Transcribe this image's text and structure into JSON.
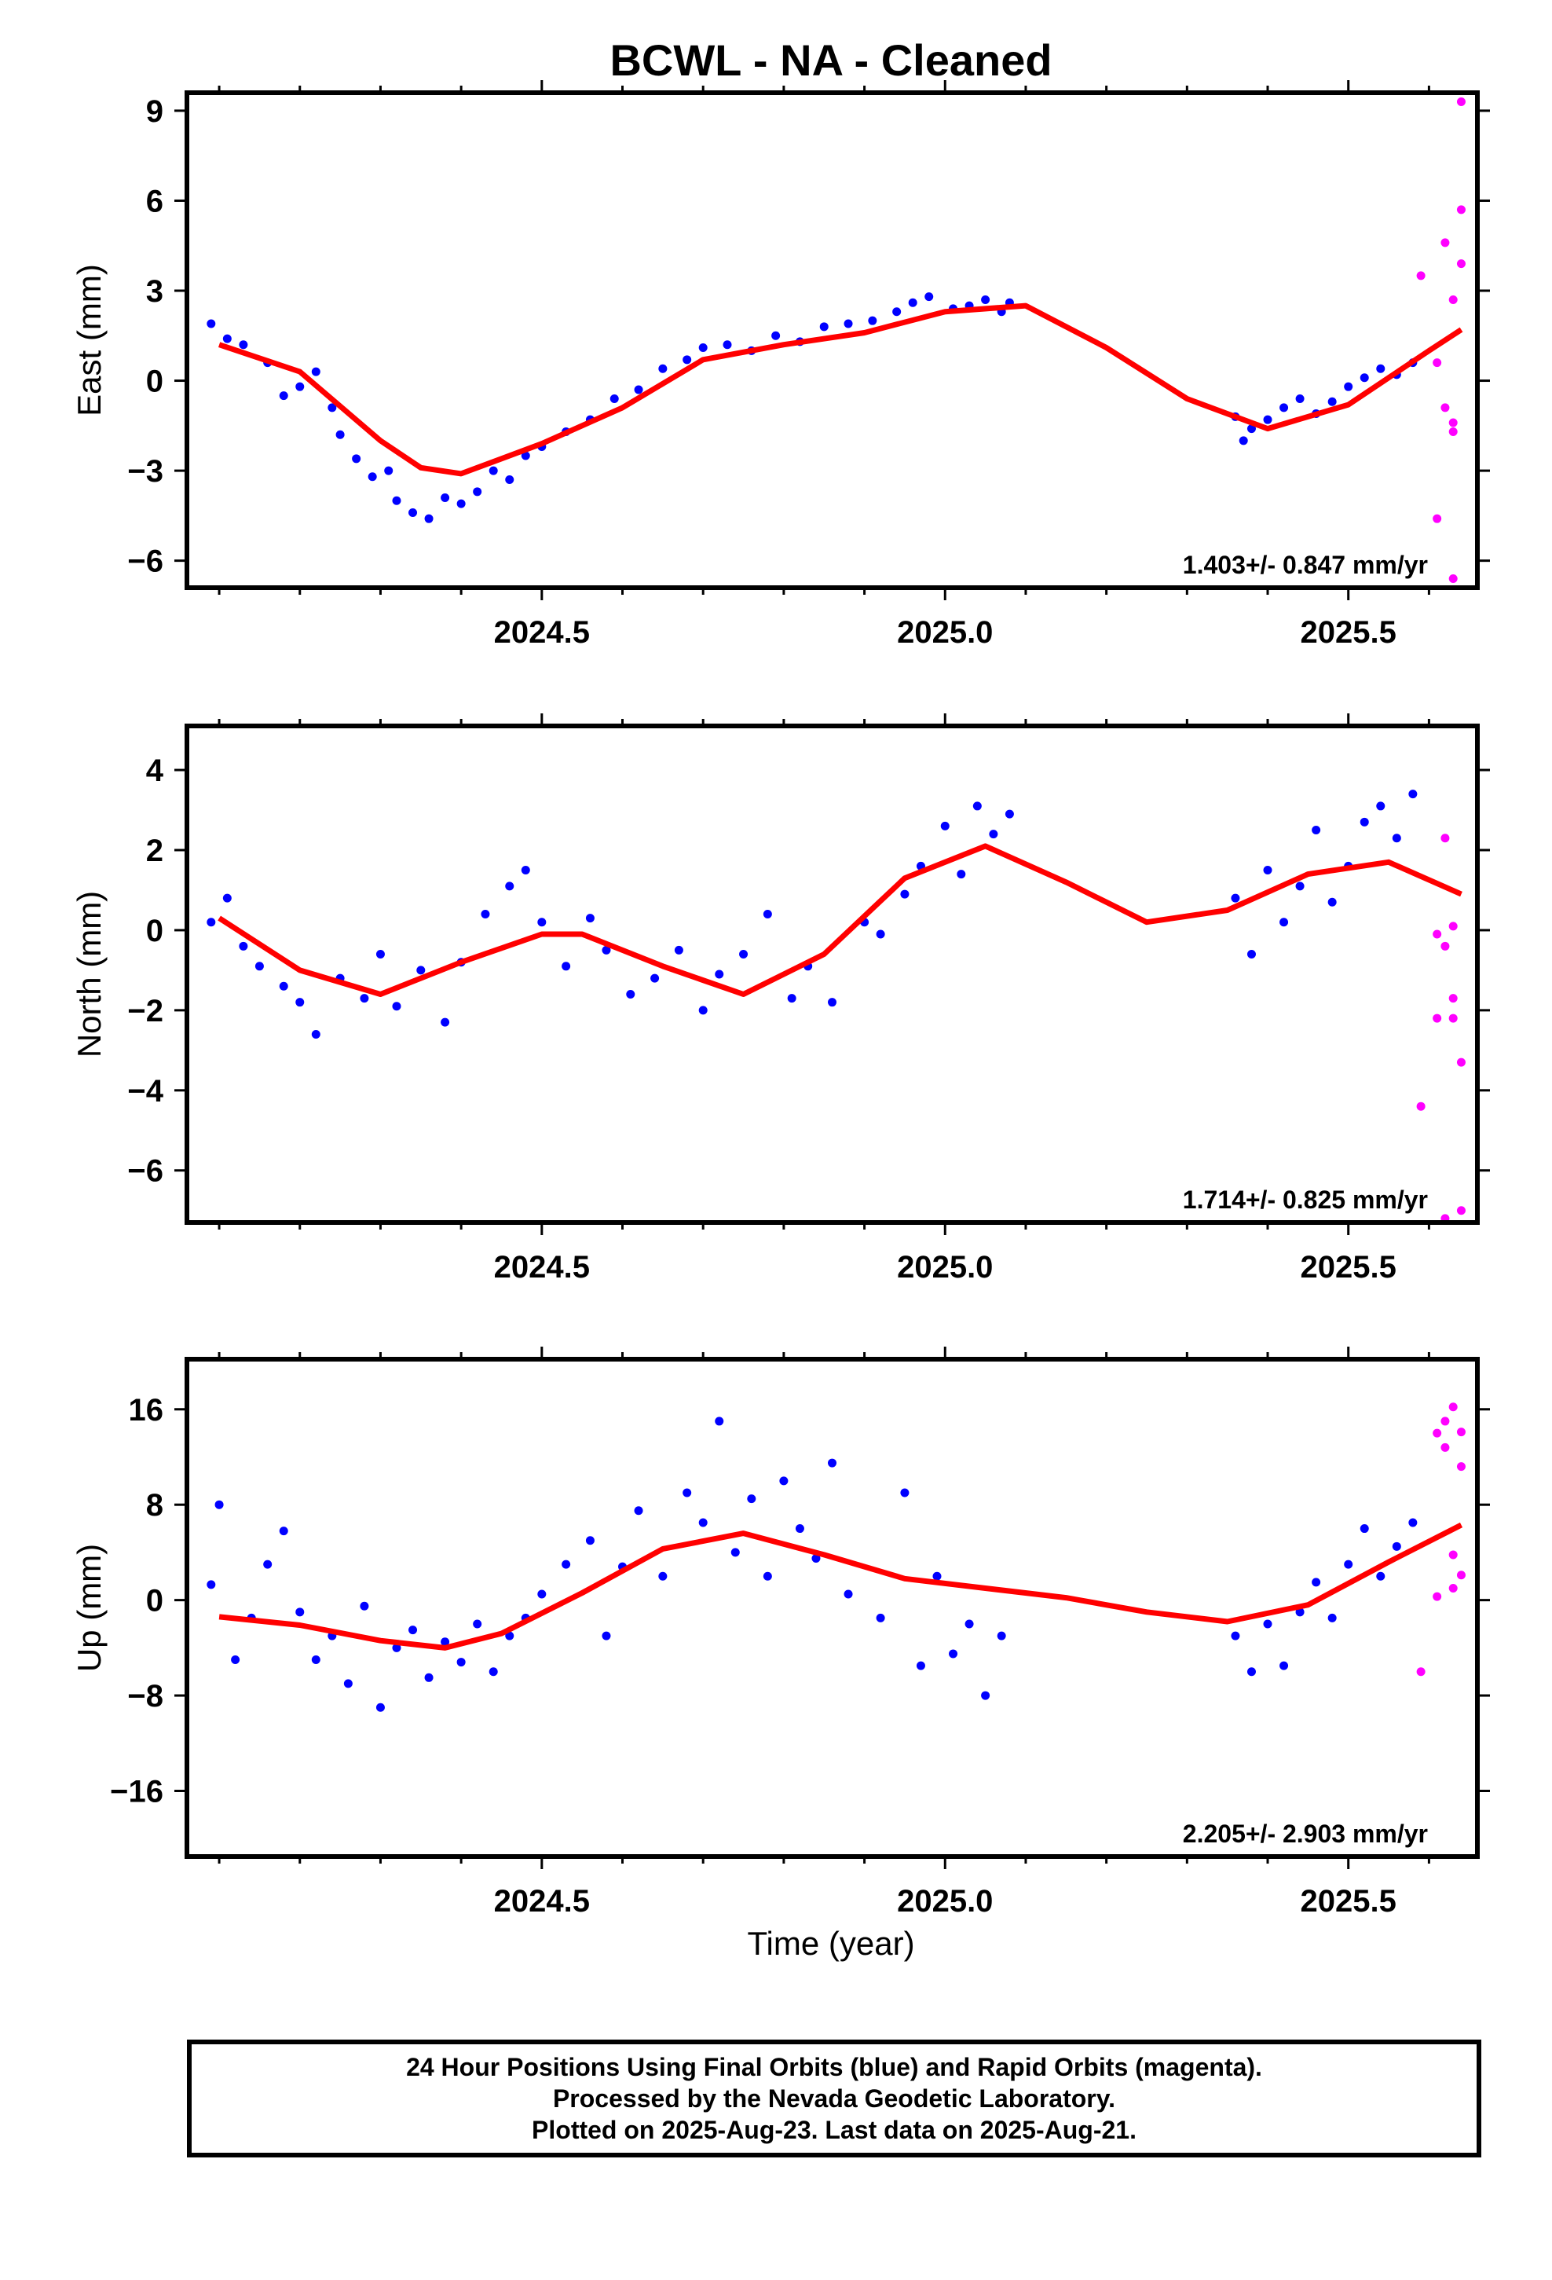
{
  "title": "BCWL  - NA - Cleaned",
  "xlabel": "Time (year)",
  "footer": {
    "line1": "24 Hour Positions Using Final Orbits (blue) and Rapid Orbits (magenta).",
    "line2": "Processed by the Nevada Geodetic Laboratory.",
    "line3": "Plotted on 2025-Aug-23. Last data on 2025-Aug-21."
  },
  "colors": {
    "final": "#0000ff",
    "rapid": "#ff00ff",
    "model": "#ff0000"
  },
  "chart_data": [
    {
      "type": "scatter",
      "ylabel": "East (mm)",
      "rate": "1.403+/- 0.847 mm/yr",
      "xlim": [
        2024.06,
        2025.66
      ],
      "ylim": [
        -6.9,
        9.6
      ],
      "yticks": [
        9,
        6,
        3,
        0,
        -3,
        -6
      ],
      "ytick_labels": [
        "9",
        "6",
        "3",
        "0",
        "−3",
        "−6"
      ],
      "xticks": [
        2024.5,
        2025.0,
        2025.5
      ],
      "xtick_labels": [
        "2024.5",
        "2025.0",
        "2025.5"
      ],
      "model": [
        [
          2024.1,
          1.2
        ],
        [
          2024.2,
          0.3
        ],
        [
          2024.3,
          -2.0
        ],
        [
          2024.35,
          -2.9
        ],
        [
          2024.4,
          -3.1
        ],
        [
          2024.5,
          -2.1
        ],
        [
          2024.6,
          -0.9
        ],
        [
          2024.7,
          0.7
        ],
        [
          2024.8,
          1.2
        ],
        [
          2024.9,
          1.6
        ],
        [
          2025.0,
          2.3
        ],
        [
          2025.1,
          2.5
        ],
        [
          2025.2,
          1.1
        ],
        [
          2025.3,
          -0.6
        ],
        [
          2025.4,
          -1.6
        ],
        [
          2025.5,
          -0.8
        ],
        [
          2025.6,
          1.0
        ],
        [
          2025.64,
          1.7
        ]
      ],
      "final": [
        [
          2024.09,
          1.9
        ],
        [
          2024.11,
          1.4
        ],
        [
          2024.13,
          1.2
        ],
        [
          2024.16,
          0.6
        ],
        [
          2024.18,
          -0.5
        ],
        [
          2024.2,
          -0.2
        ],
        [
          2024.22,
          0.3
        ],
        [
          2024.24,
          -0.9
        ],
        [
          2024.25,
          -1.8
        ],
        [
          2024.27,
          -2.6
        ],
        [
          2024.29,
          -3.2
        ],
        [
          2024.31,
          -3.0
        ],
        [
          2024.32,
          -4.0
        ],
        [
          2024.34,
          -4.4
        ],
        [
          2024.36,
          -4.6
        ],
        [
          2024.38,
          -3.9
        ],
        [
          2024.4,
          -4.1
        ],
        [
          2024.42,
          -3.7
        ],
        [
          2024.44,
          -3.0
        ],
        [
          2024.46,
          -3.3
        ],
        [
          2024.48,
          -2.5
        ],
        [
          2024.5,
          -2.2
        ],
        [
          2024.53,
          -1.7
        ],
        [
          2024.56,
          -1.3
        ],
        [
          2024.59,
          -0.6
        ],
        [
          2024.62,
          -0.3
        ],
        [
          2024.65,
          0.4
        ],
        [
          2024.68,
          0.7
        ],
        [
          2024.7,
          1.1
        ],
        [
          2024.73,
          1.2
        ],
        [
          2024.76,
          1.0
        ],
        [
          2024.79,
          1.5
        ],
        [
          2024.82,
          1.3
        ],
        [
          2024.85,
          1.8
        ],
        [
          2024.88,
          1.9
        ],
        [
          2024.91,
          2.0
        ],
        [
          2024.94,
          2.3
        ],
        [
          2024.96,
          2.6
        ],
        [
          2024.98,
          2.8
        ],
        [
          2025.01,
          2.4
        ],
        [
          2025.03,
          2.5
        ],
        [
          2025.05,
          2.7
        ],
        [
          2025.07,
          2.3
        ],
        [
          2025.08,
          2.6
        ],
        [
          2025.36,
          -1.2
        ],
        [
          2025.37,
          -2.0
        ],
        [
          2025.38,
          -1.6
        ],
        [
          2025.4,
          -1.3
        ],
        [
          2025.42,
          -0.9
        ],
        [
          2025.44,
          -0.6
        ],
        [
          2025.46,
          -1.1
        ],
        [
          2025.48,
          -0.7
        ],
        [
          2025.5,
          -0.2
        ],
        [
          2025.52,
          0.1
        ],
        [
          2025.54,
          0.4
        ],
        [
          2025.56,
          0.2
        ],
        [
          2025.58,
          0.6
        ]
      ],
      "rapid": [
        [
          2025.59,
          3.5
        ],
        [
          2025.61,
          0.6
        ],
        [
          2025.61,
          -4.6
        ],
        [
          2025.62,
          4.6
        ],
        [
          2025.62,
          -0.9
        ],
        [
          2025.63,
          2.7
        ],
        [
          2025.63,
          -1.4
        ],
        [
          2025.63,
          -1.7
        ],
        [
          2025.64,
          5.7
        ],
        [
          2025.64,
          3.9
        ],
        [
          2025.64,
          9.3
        ],
        [
          2025.63,
          -6.6
        ]
      ]
    },
    {
      "type": "scatter",
      "ylabel": "North (mm)",
      "rate": "1.714+/- 0.825 mm/yr",
      "xlim": [
        2024.06,
        2025.66
      ],
      "ylim": [
        -7.3,
        5.1
      ],
      "yticks": [
        4,
        2,
        0,
        -2,
        -4,
        -6
      ],
      "ytick_labels": [
        "4",
        "2",
        "0",
        "−2",
        "−4",
        "−6"
      ],
      "xticks": [
        2024.5,
        2025.0,
        2025.5
      ],
      "xtick_labels": [
        "2024.5",
        "2025.0",
        "2025.5"
      ],
      "model": [
        [
          2024.1,
          0.3
        ],
        [
          2024.2,
          -1.0
        ],
        [
          2024.3,
          -1.6
        ],
        [
          2024.4,
          -0.8
        ],
        [
          2024.5,
          -0.1
        ],
        [
          2024.55,
          -0.1
        ],
        [
          2024.65,
          -0.9
        ],
        [
          2024.75,
          -1.6
        ],
        [
          2024.85,
          -0.6
        ],
        [
          2024.95,
          1.3
        ],
        [
          2025.05,
          2.1
        ],
        [
          2025.15,
          1.2
        ],
        [
          2025.25,
          0.2
        ],
        [
          2025.35,
          0.5
        ],
        [
          2025.45,
          1.4
        ],
        [
          2025.55,
          1.7
        ],
        [
          2025.64,
          0.9
        ]
      ],
      "final": [
        [
          2024.09,
          0.2
        ],
        [
          2024.11,
          0.8
        ],
        [
          2024.13,
          -0.4
        ],
        [
          2024.15,
          -0.9
        ],
        [
          2024.18,
          -1.4
        ],
        [
          2024.2,
          -1.8
        ],
        [
          2024.22,
          -2.6
        ],
        [
          2024.25,
          -1.2
        ],
        [
          2024.28,
          -1.7
        ],
        [
          2024.3,
          -0.6
        ],
        [
          2024.32,
          -1.9
        ],
        [
          2024.35,
          -1.0
        ],
        [
          2024.38,
          -2.3
        ],
        [
          2024.4,
          -0.8
        ],
        [
          2024.43,
          0.4
        ],
        [
          2024.46,
          1.1
        ],
        [
          2024.48,
          1.5
        ],
        [
          2024.5,
          0.2
        ],
        [
          2024.53,
          -0.9
        ],
        [
          2024.56,
          0.3
        ],
        [
          2024.58,
          -0.5
        ],
        [
          2024.61,
          -1.6
        ],
        [
          2024.64,
          -1.2
        ],
        [
          2024.67,
          -0.5
        ],
        [
          2024.7,
          -2.0
        ],
        [
          2024.72,
          -1.1
        ],
        [
          2024.75,
          -0.6
        ],
        [
          2024.78,
          0.4
        ],
        [
          2024.81,
          -1.7
        ],
        [
          2024.83,
          -0.9
        ],
        [
          2024.86,
          -1.8
        ],
        [
          2024.9,
          0.2
        ],
        [
          2024.92,
          -0.1
        ],
        [
          2024.95,
          0.9
        ],
        [
          2024.97,
          1.6
        ],
        [
          2025.0,
          2.6
        ],
        [
          2025.02,
          1.4
        ],
        [
          2025.04,
          3.1
        ],
        [
          2025.06,
          2.4
        ],
        [
          2025.08,
          2.9
        ],
        [
          2025.36,
          0.8
        ],
        [
          2025.38,
          -0.6
        ],
        [
          2025.4,
          1.5
        ],
        [
          2025.42,
          0.2
        ],
        [
          2025.44,
          1.1
        ],
        [
          2025.46,
          2.5
        ],
        [
          2025.48,
          0.7
        ],
        [
          2025.5,
          1.6
        ],
        [
          2025.52,
          2.7
        ],
        [
          2025.54,
          3.1
        ],
        [
          2025.56,
          2.3
        ],
        [
          2025.58,
          3.4
        ]
      ],
      "rapid": [
        [
          2025.59,
          -4.4
        ],
        [
          2025.61,
          -0.1
        ],
        [
          2025.61,
          -2.2
        ],
        [
          2025.62,
          2.3
        ],
        [
          2025.62,
          -0.4
        ],
        [
          2025.63,
          -2.2
        ],
        [
          2025.63,
          0.1
        ],
        [
          2025.63,
          -1.7
        ],
        [
          2025.64,
          -3.3
        ],
        [
          2025.64,
          -7.0
        ],
        [
          2025.62,
          -7.2
        ]
      ]
    },
    {
      "type": "scatter",
      "ylabel": "Up (mm)",
      "rate": "2.205+/- 2.903 mm/yr",
      "xlim": [
        2024.06,
        2025.66
      ],
      "ylim": [
        -21.5,
        20.2
      ],
      "yticks": [
        16,
        8,
        0,
        -8,
        -16
      ],
      "ytick_labels": [
        "16",
        "8",
        "0",
        "−8",
        "−16"
      ],
      "xticks": [
        2024.5,
        2025.0,
        2025.5
      ],
      "xtick_labels": [
        "2024.5",
        "2025.0",
        "2025.5"
      ],
      "model": [
        [
          2024.1,
          -1.4
        ],
        [
          2024.2,
          -2.1
        ],
        [
          2024.3,
          -3.4
        ],
        [
          2024.38,
          -4.0
        ],
        [
          2024.45,
          -2.8
        ],
        [
          2024.55,
          0.6
        ],
        [
          2024.65,
          4.3
        ],
        [
          2024.75,
          5.6
        ],
        [
          2024.85,
          3.8
        ],
        [
          2024.95,
          1.8
        ],
        [
          2025.05,
          1.0
        ],
        [
          2025.15,
          0.2
        ],
        [
          2025.25,
          -1.0
        ],
        [
          2025.35,
          -1.8
        ],
        [
          2025.45,
          -0.4
        ],
        [
          2025.55,
          3.2
        ],
        [
          2025.64,
          6.3
        ]
      ],
      "final": [
        [
          2024.09,
          1.3
        ],
        [
          2024.1,
          8.0
        ],
        [
          2024.12,
          -5.0
        ],
        [
          2024.14,
          -1.5
        ],
        [
          2024.16,
          3.0
        ],
        [
          2024.18,
          5.8
        ],
        [
          2024.2,
          -1.0
        ],
        [
          2024.22,
          -5.0
        ],
        [
          2024.24,
          -3.0
        ],
        [
          2024.26,
          -7.0
        ],
        [
          2024.28,
          -0.5
        ],
        [
          2024.3,
          -9.0
        ],
        [
          2024.32,
          -4.0
        ],
        [
          2024.34,
          -2.5
        ],
        [
          2024.36,
          -6.5
        ],
        [
          2024.38,
          -3.5
        ],
        [
          2024.4,
          -5.2
        ],
        [
          2024.42,
          -2.0
        ],
        [
          2024.44,
          -6.0
        ],
        [
          2024.46,
          -3.0
        ],
        [
          2024.48,
          -1.5
        ],
        [
          2024.5,
          0.5
        ],
        [
          2024.53,
          3.0
        ],
        [
          2024.56,
          5.0
        ],
        [
          2024.58,
          -3.0
        ],
        [
          2024.6,
          2.8
        ],
        [
          2024.62,
          7.5
        ],
        [
          2024.65,
          2.0
        ],
        [
          2024.68,
          9.0
        ],
        [
          2024.7,
          6.5
        ],
        [
          2024.72,
          15.0
        ],
        [
          2024.74,
          4.0
        ],
        [
          2024.76,
          8.5
        ],
        [
          2024.78,
          2.0
        ],
        [
          2024.8,
          10.0
        ],
        [
          2024.82,
          6.0
        ],
        [
          2024.84,
          3.5
        ],
        [
          2024.86,
          11.5
        ],
        [
          2024.88,
          0.5
        ],
        [
          2024.92,
          -1.5
        ],
        [
          2024.95,
          9.0
        ],
        [
          2024.97,
          -5.5
        ],
        [
          2024.99,
          2.0
        ],
        [
          2025.01,
          -4.5
        ],
        [
          2025.03,
          -2.0
        ],
        [
          2025.05,
          -8.0
        ],
        [
          2025.07,
          -3.0
        ],
        [
          2025.36,
          -3.0
        ],
        [
          2025.38,
          -6.0
        ],
        [
          2025.4,
          -2.0
        ],
        [
          2025.42,
          -5.5
        ],
        [
          2025.44,
          -1.0
        ],
        [
          2025.46,
          1.5
        ],
        [
          2025.48,
          -1.5
        ],
        [
          2025.5,
          3.0
        ],
        [
          2025.52,
          6.0
        ],
        [
          2025.54,
          2.0
        ],
        [
          2025.56,
          4.5
        ],
        [
          2025.58,
          6.5
        ]
      ],
      "rapid": [
        [
          2025.59,
          -6.0
        ],
        [
          2025.61,
          14.0
        ],
        [
          2025.61,
          0.3
        ],
        [
          2025.62,
          15.0
        ],
        [
          2025.62,
          12.8
        ],
        [
          2025.63,
          1.0
        ],
        [
          2025.63,
          16.2
        ],
        [
          2025.63,
          3.8
        ],
        [
          2025.64,
          11.2
        ],
        [
          2025.64,
          2.1
        ],
        [
          2025.64,
          14.1
        ]
      ]
    }
  ]
}
